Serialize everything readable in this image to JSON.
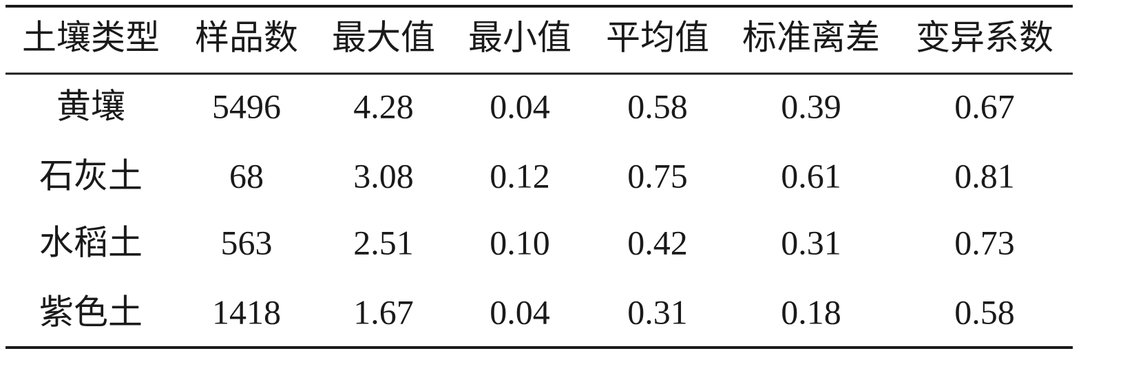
{
  "table": {
    "header": [
      "土壤类型",
      "样品数",
      "最大值",
      "最小值",
      "平均值",
      "标准离差",
      "变异系数"
    ],
    "rows": [
      [
        "黄壤",
        "5496",
        "4.28",
        "0.04",
        "0.58",
        "0.39",
        "0.67"
      ],
      [
        "石灰土",
        "68",
        "3.08",
        "0.12",
        "0.75",
        "0.61",
        "0.81"
      ],
      [
        "水稻土",
        "563",
        "2.51",
        "0.10",
        "0.42",
        "0.31",
        "0.73"
      ],
      [
        "紫色土",
        "1418",
        "1.67",
        "0.04",
        "0.31",
        "0.18",
        "0.58"
      ]
    ]
  }
}
